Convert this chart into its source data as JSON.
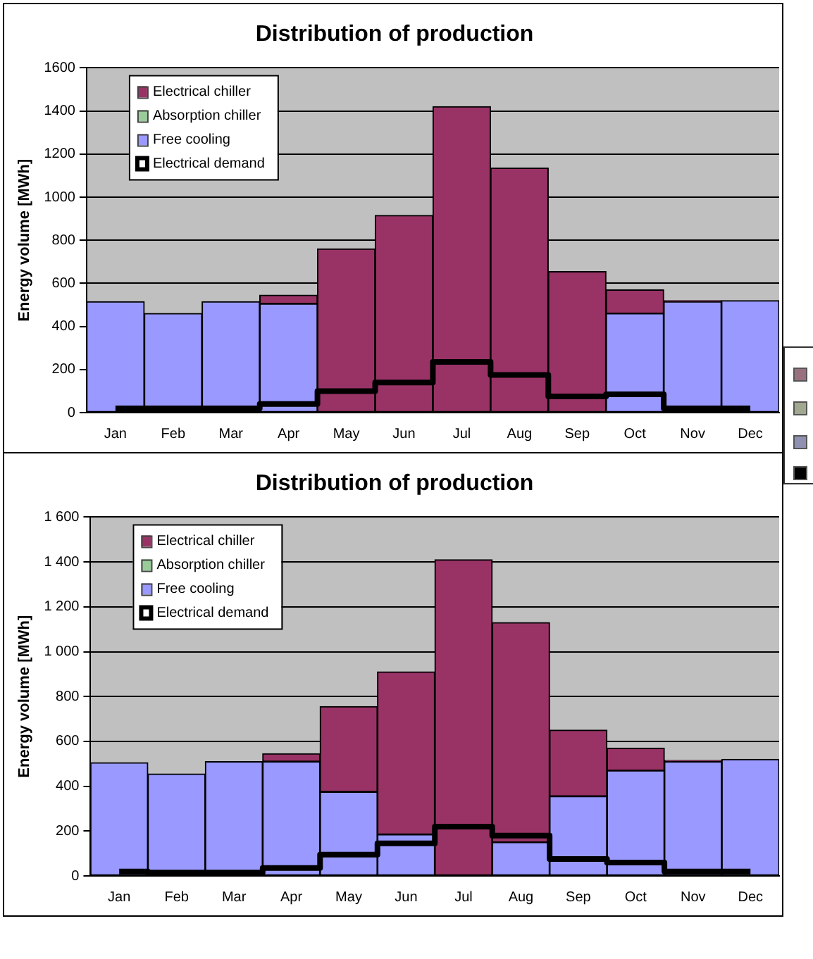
{
  "chart_data": [
    {
      "type": "bar",
      "title": "Distribution of production",
      "ylabel": "Energy volume [MWh]",
      "categories": [
        "Jan",
        "Feb",
        "Mar",
        "Apr",
        "May",
        "Jun",
        "Jul",
        "Aug",
        "Sep",
        "Oct",
        "Nov",
        "Dec"
      ],
      "stacked": true,
      "ylim": [
        0,
        1600
      ],
      "yticks": [
        0,
        200,
        400,
        600,
        800,
        1000,
        1200,
        1400,
        1600
      ],
      "grid": "y",
      "legend": "top left",
      "series": [
        {
          "name": "Free cooling",
          "color": "#9999ff",
          "values": [
            515,
            460,
            515,
            505,
            0,
            0,
            0,
            0,
            0,
            460,
            515,
            520
          ]
        },
        {
          "name": "Absorption chiller",
          "color": "#99cc99",
          "values": [
            0,
            0,
            0,
            0,
            0,
            0,
            0,
            0,
            0,
            0,
            0,
            0
          ]
        },
        {
          "name": "Electrical chiller",
          "color": "#993366",
          "values": [
            0,
            0,
            0,
            40,
            760,
            915,
            1420,
            1135,
            655,
            110,
            5,
            0
          ]
        },
        {
          "name": "Electrical demand",
          "type": "step",
          "color": "#000000",
          "values": [
            20,
            20,
            20,
            40,
            100,
            140,
            235,
            175,
            75,
            85,
            20,
            20
          ]
        }
      ]
    },
    {
      "type": "bar",
      "title": "Distribution of production",
      "ylabel": "Energy volume [MWh]",
      "categories": [
        "Jan",
        "Feb",
        "Mar",
        "Apr",
        "May",
        "Jun",
        "Jul",
        "Aug",
        "Sep",
        "Oct",
        "Nov",
        "Dec"
      ],
      "stacked": true,
      "ylim": [
        0,
        1600
      ],
      "yticks": [
        0,
        200,
        400,
        600,
        800,
        {
          "value": 1000,
          "label": "1 000"
        },
        {
          "value": 1200,
          "label": "1 200"
        },
        {
          "value": 1400,
          "label": "1 400"
        },
        {
          "value": 1600,
          "label": "1 600"
        }
      ],
      "grid": "y",
      "legend": "top left",
      "series": [
        {
          "name": "Free cooling",
          "color": "#9999ff",
          "values": [
            505,
            455,
            510,
            510,
            375,
            185,
            0,
            150,
            355,
            470,
            510,
            520
          ]
        },
        {
          "name": "Absorption chiller",
          "color": "#99cc99",
          "values": [
            0,
            0,
            0,
            0,
            0,
            0,
            0,
            0,
            0,
            0,
            0,
            0
          ]
        },
        {
          "name": "Electrical chiller",
          "color": "#993366",
          "values": [
            0,
            0,
            0,
            35,
            380,
            725,
            1410,
            980,
            295,
            100,
            5,
            0
          ]
        },
        {
          "name": "Electrical demand",
          "type": "step",
          "color": "#000000",
          "values": [
            20,
            15,
            15,
            35,
            95,
            145,
            220,
            180,
            75,
            60,
            20,
            20
          ]
        }
      ]
    }
  ]
}
